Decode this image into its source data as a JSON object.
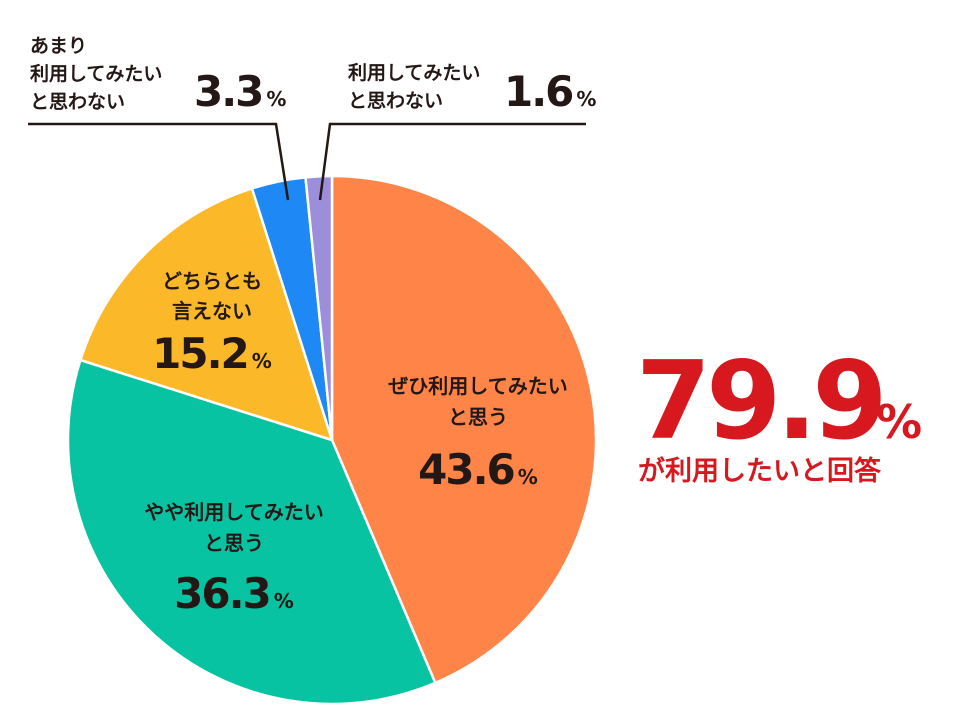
{
  "chart_data": {
    "type": "pie",
    "start": "top",
    "direction": "clockwise",
    "slices": [
      {
        "label_lines": [
          "ぜひ利用してみたい",
          "と思う"
        ],
        "value": 43.6,
        "value_text": "43.6",
        "unit": "%",
        "color": "#ff8447"
      },
      {
        "label_lines": [
          "やや利用してみたい",
          "と思う"
        ],
        "value": 36.3,
        "value_text": "36.3",
        "unit": "%",
        "color": "#08c3a1"
      },
      {
        "label_lines": [
          "どちらとも",
          "言えない"
        ],
        "value": 15.2,
        "value_text": "15.2",
        "unit": "%",
        "color": "#fbb829"
      },
      {
        "label_lines": [
          "あまり",
          "利用してみたい",
          "と思わない"
        ],
        "value": 3.3,
        "value_text": "3.3",
        "unit": "%",
        "color": "#1e88f5"
      },
      {
        "label_lines": [
          "利用してみたい",
          "と思わない"
        ],
        "value": 1.6,
        "value_text": "1.6",
        "unit": "%",
        "color": "#9d8edb"
      }
    ]
  },
  "highlight": {
    "value": "79.9",
    "unit": "%",
    "caption": "が利用したいと回答",
    "color": "#d7191f"
  }
}
